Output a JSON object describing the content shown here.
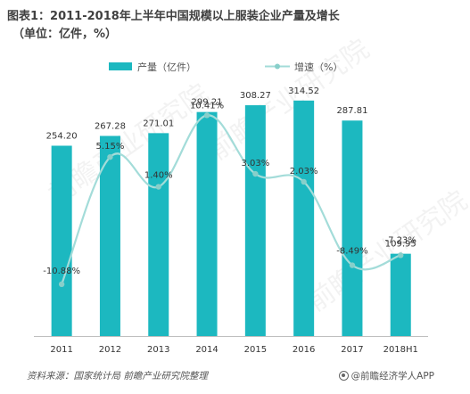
{
  "title_line1": "图表1：2011-2018年上半年中国规模以上服装企业产量及增长",
  "title_line2": "（单位：亿件，%）",
  "footer_source": "资料来源：国家统计局 前瞻产业研究院整理",
  "footer_brand": "@前瞻经济学人APP",
  "colors": {
    "bar": "#1cb8c0",
    "line": "#a3dcd9",
    "line_marker": "#88cfca"
  },
  "chart_data": {
    "type": "bar+line",
    "categories": [
      "2011",
      "2012",
      "2013",
      "2014",
      "2015",
      "2016",
      "2017",
      "2018H1"
    ],
    "series": [
      {
        "name": "产量（亿件）",
        "type": "bar",
        "values": [
          254.2,
          267.28,
          271.01,
          299.21,
          308.27,
          314.52,
          287.81,
          109.95
        ],
        "labels": [
          "254.20",
          "267.28",
          "271.01",
          "299.21",
          "308.27",
          "314.52",
          "287.81",
          "109.95"
        ]
      },
      {
        "name": "增速（%）",
        "type": "line",
        "values": [
          -10.88,
          5.15,
          1.4,
          10.41,
          3.03,
          2.03,
          -8.49,
          -7.23
        ],
        "labels": [
          "-10.88%",
          "5.15%",
          "1.40%",
          "10.41%",
          "3.03%",
          "2.03%",
          "-8.49%",
          "-7.23%"
        ]
      }
    ],
    "legend_position": "top",
    "grid": false
  }
}
